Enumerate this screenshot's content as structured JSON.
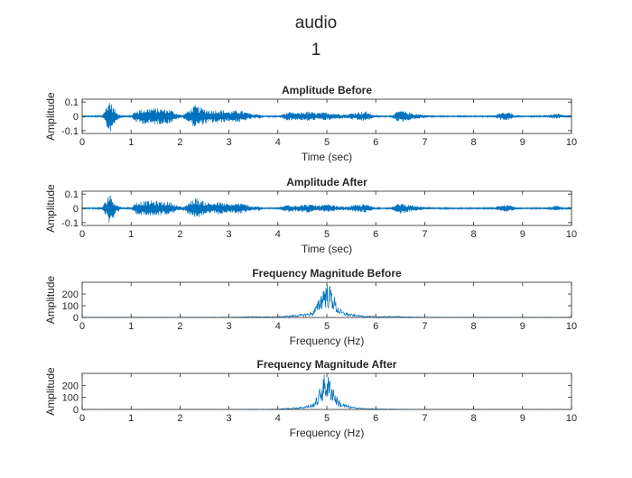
{
  "figure": {
    "title_line1": "audio",
    "title_line2": "1"
  },
  "colors": {
    "series": "#0072BD",
    "axes": "#262626"
  },
  "chart_data": [
    {
      "type": "line",
      "title": "Amplitude Before",
      "xlabel": "Time (sec)",
      "ylabel": "Amplitude",
      "xlim": [
        0,
        10
      ],
      "ylim": [
        -0.12,
        0.12
      ],
      "xticks": [
        0,
        1,
        2,
        3,
        4,
        5,
        6,
        7,
        8,
        9,
        10
      ],
      "yticks": [
        -0.1,
        0,
        0.1
      ],
      "ytick_labels": [
        "-0.1",
        "0",
        "0.1"
      ],
      "grid": false,
      "series": [
        {
          "style": "envelope",
          "x": [
            0,
            0.4,
            0.5,
            0.55,
            0.6,
            0.7,
            0.8,
            1.0,
            1.1,
            1.2,
            1.4,
            1.6,
            1.8,
            1.95,
            2.05,
            2.2,
            2.3,
            2.45,
            2.6,
            2.8,
            3.0,
            3.2,
            3.35,
            3.5,
            3.6,
            3.7,
            4.0,
            4.2,
            4.4,
            4.6,
            4.8,
            5.0,
            5.2,
            5.4,
            5.6,
            5.8,
            5.95,
            6.1,
            6.3,
            6.5,
            6.6,
            6.8,
            7.0,
            7.2,
            7.4,
            7.6,
            7.8,
            8.0,
            8.2,
            8.4,
            8.55,
            8.7,
            8.85,
            9.0,
            9.2,
            9.4,
            9.55,
            9.7,
            9.85,
            10.0
          ],
          "values": [
            0.004,
            0.005,
            0.07,
            0.13,
            0.09,
            0.03,
            0.008,
            0.006,
            0.045,
            0.05,
            0.06,
            0.055,
            0.05,
            0.02,
            0.01,
            0.05,
            0.08,
            0.06,
            0.045,
            0.05,
            0.035,
            0.045,
            0.03,
            0.015,
            0.02,
            0.004,
            0.005,
            0.03,
            0.025,
            0.035,
            0.025,
            0.03,
            0.02,
            0.015,
            0.03,
            0.035,
            0.012,
            0.004,
            0.005,
            0.045,
            0.035,
            0.02,
            0.012,
            0.004,
            0.005,
            0.004,
            0.005,
            0.004,
            0.005,
            0.005,
            0.025,
            0.03,
            0.01,
            0.004,
            0.005,
            0.004,
            0.012,
            0.02,
            0.008,
            0.004
          ]
        }
      ]
    },
    {
      "type": "line",
      "title": "Amplitude After",
      "xlabel": "Time (sec)",
      "ylabel": "Amplitude",
      "xlim": [
        0,
        10
      ],
      "ylim": [
        -0.12,
        0.12
      ],
      "xticks": [
        0,
        1,
        2,
        3,
        4,
        5,
        6,
        7,
        8,
        9,
        10
      ],
      "yticks": [
        -0.1,
        0,
        0.1
      ],
      "ytick_labels": [
        "-0.1",
        "0",
        "0.1"
      ],
      "grid": false,
      "series": [
        {
          "style": "envelope",
          "x": [
            0,
            0.4,
            0.5,
            0.55,
            0.6,
            0.7,
            0.8,
            1.0,
            1.1,
            1.2,
            1.4,
            1.6,
            1.8,
            1.95,
            2.05,
            2.2,
            2.3,
            2.45,
            2.6,
            2.8,
            3.0,
            3.2,
            3.35,
            3.5,
            3.6,
            3.7,
            4.0,
            4.2,
            4.4,
            4.6,
            4.8,
            5.0,
            5.2,
            5.4,
            5.6,
            5.8,
            5.95,
            6.1,
            6.3,
            6.5,
            6.6,
            6.8,
            7.0,
            7.2,
            7.4,
            7.6,
            7.8,
            8.0,
            8.2,
            8.4,
            8.55,
            8.7,
            8.85,
            9.0,
            9.2,
            9.4,
            9.55,
            9.7,
            9.85,
            10.0
          ],
          "values": [
            0.004,
            0.005,
            0.065,
            0.12,
            0.085,
            0.03,
            0.008,
            0.006,
            0.045,
            0.05,
            0.055,
            0.05,
            0.045,
            0.02,
            0.01,
            0.045,
            0.075,
            0.055,
            0.04,
            0.045,
            0.03,
            0.04,
            0.028,
            0.014,
            0.018,
            0.004,
            0.005,
            0.028,
            0.022,
            0.03,
            0.022,
            0.028,
            0.018,
            0.014,
            0.025,
            0.03,
            0.012,
            0.004,
            0.005,
            0.04,
            0.03,
            0.018,
            0.01,
            0.004,
            0.005,
            0.004,
            0.005,
            0.004,
            0.005,
            0.005,
            0.022,
            0.026,
            0.01,
            0.004,
            0.005,
            0.004,
            0.01,
            0.018,
            0.007,
            0.004
          ]
        }
      ]
    },
    {
      "type": "line",
      "title": "Frequency Magnitude Before",
      "xlabel": "Frequency (Hz)",
      "ylabel": "Amplitude",
      "xlim": [
        0,
        10
      ],
      "ylim": [
        0,
        300
      ],
      "xticks": [
        0,
        1,
        2,
        3,
        4,
        5,
        6,
        7,
        8,
        9,
        10
      ],
      "yticks": [
        0,
        100,
        200
      ],
      "ytick_labels": [
        "0",
        "100",
        "200"
      ],
      "grid": false,
      "series": [
        {
          "style": "spectrum",
          "x": [
            0,
            1.0,
            2.0,
            3.0,
            3.3,
            3.5,
            3.7,
            4.0,
            4.3,
            4.5,
            4.7,
            4.8,
            4.9,
            4.95,
            5.0,
            5.05,
            5.1,
            5.2,
            5.3,
            5.5,
            5.7,
            6.0,
            6.4,
            6.6,
            7.0,
            8.0,
            9.0,
            10.0
          ],
          "values": [
            3,
            2,
            2,
            3,
            6,
            10,
            6,
            8,
            20,
            30,
            50,
            120,
            250,
            300,
            300,
            280,
            260,
            120,
            60,
            30,
            18,
            8,
            12,
            6,
            3,
            2,
            2,
            2
          ]
        }
      ]
    },
    {
      "type": "line",
      "title": "Frequency Magnitude After",
      "xlabel": "Frequency (Hz)",
      "ylabel": "Amplitude",
      "xlim": [
        0,
        10
      ],
      "ylim": [
        0,
        300
      ],
      "xticks": [
        0,
        1,
        2,
        3,
        4,
        5,
        6,
        7,
        8,
        9,
        10
      ],
      "yticks": [
        0,
        100,
        200
      ],
      "ytick_labels": [
        "0",
        "100",
        "200"
      ],
      "grid": false,
      "series": [
        {
          "style": "spectrum",
          "x": [
            0,
            1.0,
            2.0,
            3.0,
            3.3,
            3.5,
            3.7,
            4.0,
            4.3,
            4.5,
            4.7,
            4.8,
            4.9,
            4.95,
            5.0,
            5.05,
            5.1,
            5.2,
            5.3,
            5.5,
            5.7,
            6.0,
            6.4,
            6.6,
            7.0,
            8.0,
            9.0,
            10.0
          ],
          "values": [
            1,
            1,
            1,
            1,
            2,
            3,
            2,
            4,
            15,
            25,
            45,
            110,
            240,
            300,
            300,
            270,
            250,
            110,
            55,
            25,
            12,
            5,
            3,
            2,
            1,
            1,
            1,
            1
          ]
        }
      ]
    }
  ]
}
